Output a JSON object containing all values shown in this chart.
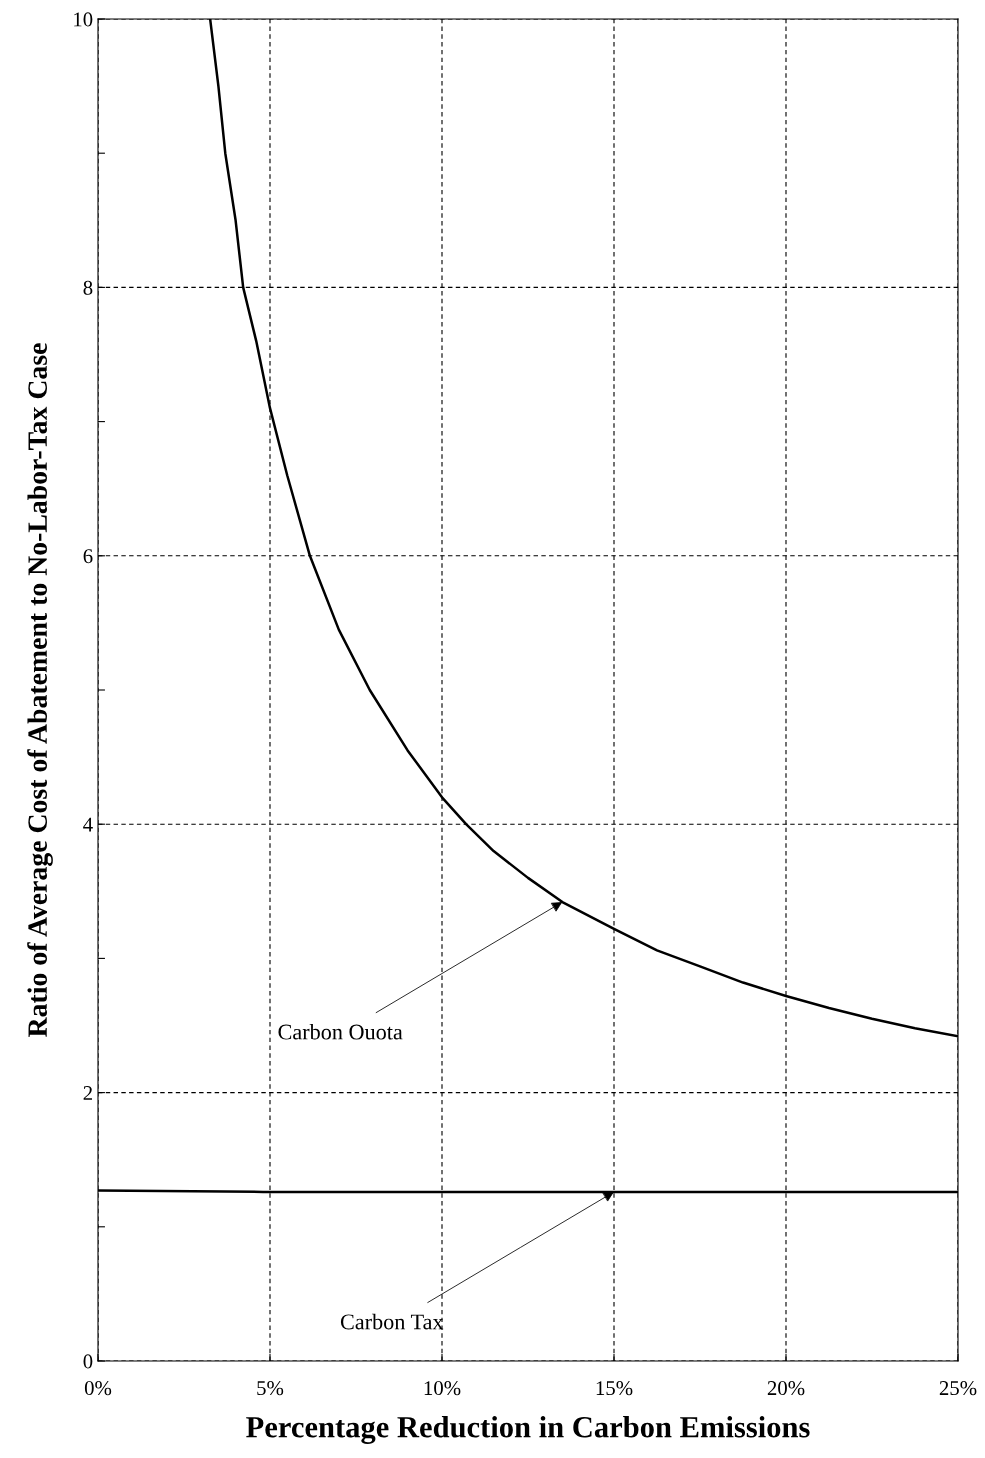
{
  "chart_data": {
    "type": "line",
    "xlabel": "Percentage Reduction in Carbon Emissions",
    "ylabel": "Ratio of Average Cost of Abatement to No-Labor-Tax Case",
    "series": [
      {
        "color": "#000000",
        "x": [
          3.26,
          3.5,
          3.7,
          4.0,
          4.22,
          4.6,
          5.0,
          5.5,
          6.16,
          7.0,
          7.9,
          9.0,
          10.0,
          10.7,
          11.5,
          12.5,
          13.5,
          15.0,
          16.25,
          17.5,
          18.75,
          20.0,
          21.25,
          22.5,
          23.75,
          25.0
        ],
        "values": [
          10,
          9.5,
          9.0,
          8.5,
          8.0,
          7.6,
          7.1,
          6.6,
          6.0,
          5.45,
          5.0,
          4.55,
          4.2,
          4.0,
          3.8,
          3.6,
          3.42,
          3.22,
          3.06,
          2.94,
          2.82,
          2.72,
          2.63,
          2.55,
          2.48,
          2.42
        ]
      },
      {
        "color": "#000000",
        "x": [
          0,
          4.8,
          25
        ],
        "values": [
          1.27,
          1.26,
          1.26
        ]
      }
    ],
    "xlim": [
      0,
      25
    ],
    "xticks": [
      {
        "value": 0,
        "label": "0%"
      },
      {
        "value": 5,
        "label": "5%"
      },
      {
        "value": 10,
        "label": "10%"
      },
      {
        "value": 15,
        "label": "15%"
      },
      {
        "value": 20,
        "label": "20%"
      },
      {
        "value": 25,
        "label": "25%"
      }
    ],
    "ylim": [
      0,
      10
    ],
    "yticks": [
      0,
      {
        "value": 1,
        "label": null
      },
      2,
      {
        "value": 3,
        "label": null
      },
      4,
      {
        "value": 5,
        "label": null
      },
      6,
      {
        "value": 7,
        "label": null
      },
      8,
      {
        "value": 9,
        "label": null
      },
      10
    ],
    "grid": true,
    "line_style": "solid",
    "annotations": [
      {
        "text": "Carbon Ouota",
        "x": 13.5,
        "y": 3.42
      },
      {
        "text": "Carbon Tax",
        "x": 15.0,
        "y": 1.26
      }
    ]
  }
}
